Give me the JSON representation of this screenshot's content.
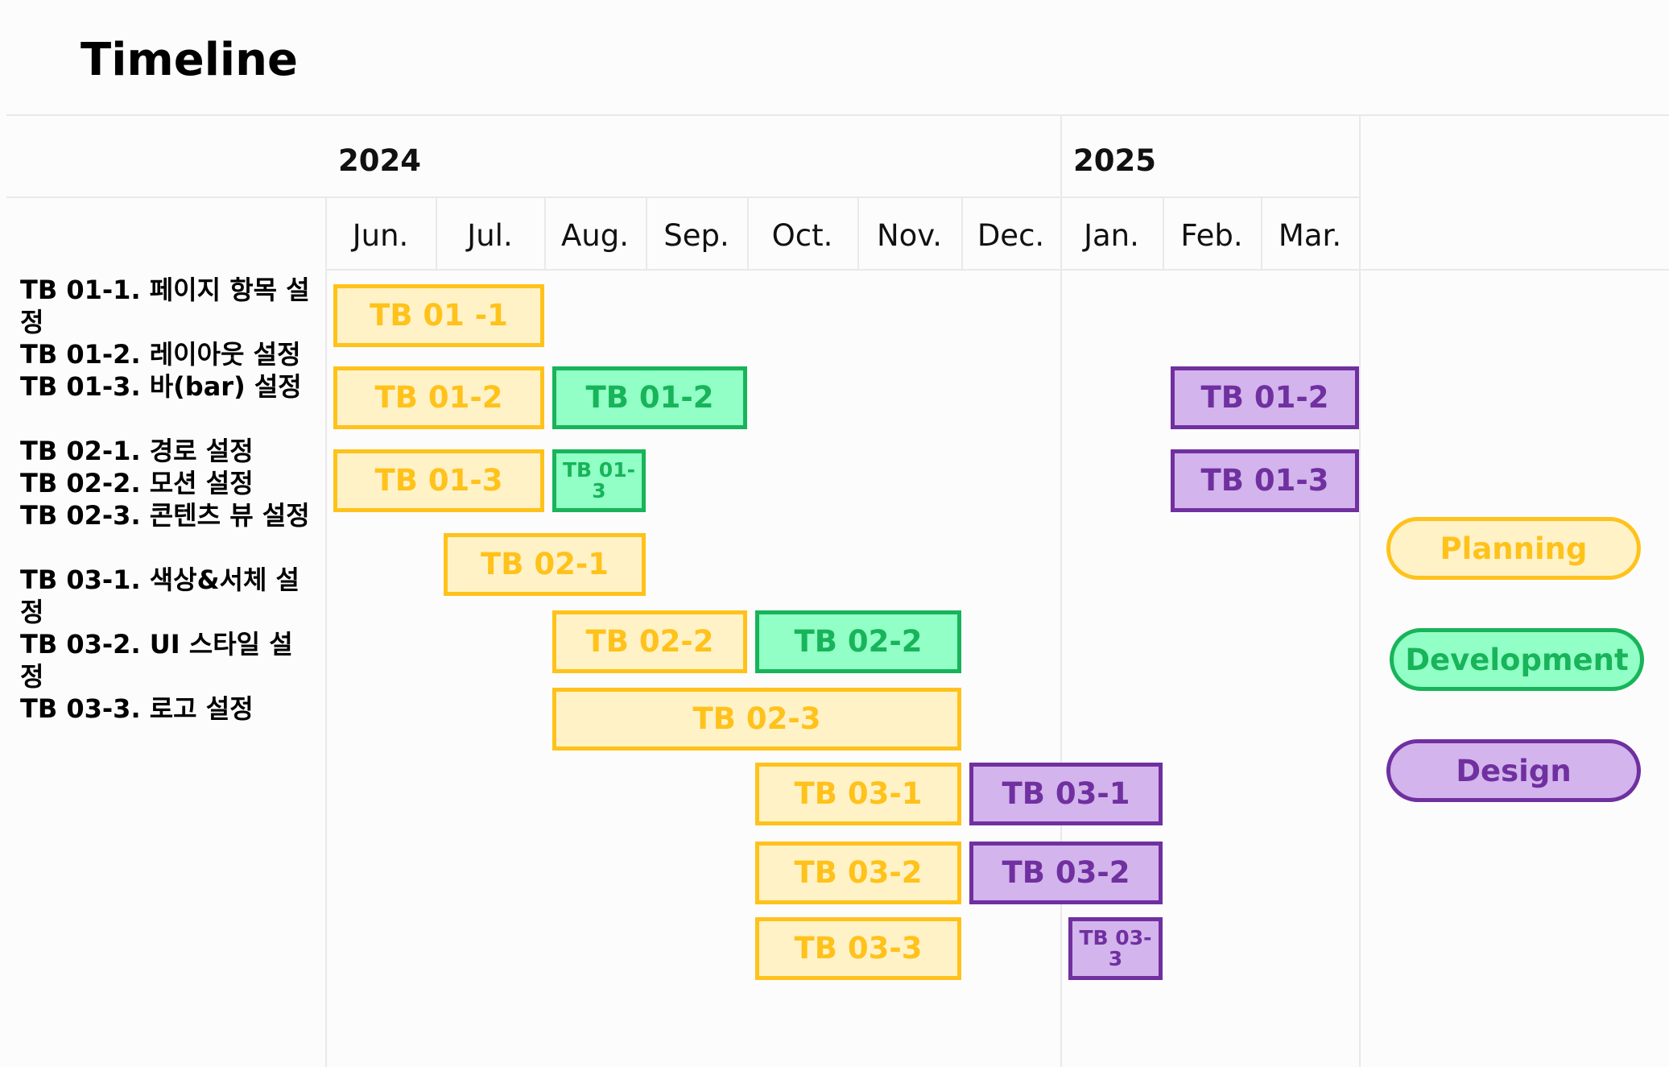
{
  "title": "Timeline",
  "colors": {
    "planning": {
      "fill": "#fff2c7",
      "border": "#ffc21b",
      "text": "#ffc21b"
    },
    "development": {
      "fill": "#92ffc6",
      "border": "#18b45a",
      "text": "#18b45a"
    },
    "design": {
      "fill": "#d3b4ec",
      "border": "#7030a0",
      "text": "#7030a0"
    }
  },
  "task_groups": [
    [
      "TB 01-1. 페이지 항목 설정",
      "TB 01-2. 레이아웃 설정",
      "TB 01-3. 바(bar) 설정"
    ],
    [
      "TB 02-1. 경로 설정",
      "TB 02-2. 모션 설정",
      "TB 02-3. 콘텐츠 뷰 설정"
    ],
    [
      "TB 03-1. 색상&서체 설정",
      "TB 03-2. UI 스타일 설정",
      "TB 03-3. 로고 설정"
    ]
  ],
  "chart_data": {
    "type": "gantt",
    "years": [
      {
        "label": "2024",
        "start_month": 0
      },
      {
        "label": "2025",
        "start_month": 7
      }
    ],
    "months": [
      "Jun.",
      "Jul.",
      "Aug.",
      "Sep.",
      "Oct.",
      "Nov.",
      "Dec.",
      "Jan.",
      "Feb.",
      "Mar."
    ],
    "bars": [
      {
        "label": "TB 01 -1",
        "phase": "planning",
        "row": 0,
        "start": 0,
        "end": 2
      },
      {
        "label": "TB 01-2",
        "phase": "planning",
        "row": 1,
        "start": 0,
        "end": 2
      },
      {
        "label": "TB 01-2",
        "phase": "development",
        "row": 1,
        "start": 2,
        "end": 4
      },
      {
        "label": "TB 01-2",
        "phase": "design",
        "row": 1,
        "start": 8,
        "end": 10
      },
      {
        "label": "TB 01-3",
        "phase": "planning",
        "row": 2,
        "start": 0,
        "end": 2
      },
      {
        "label": "TB 01-3",
        "phase": "development",
        "row": 2,
        "start": 2,
        "end": 3
      },
      {
        "label": "TB 01-3",
        "phase": "design",
        "row": 2,
        "start": 8,
        "end": 10
      },
      {
        "label": "TB 02-1",
        "phase": "planning",
        "row": 3,
        "start": 1,
        "end": 3
      },
      {
        "label": "TB 02-2",
        "phase": "planning",
        "row": 4,
        "start": 2,
        "end": 4
      },
      {
        "label": "TB 02-2",
        "phase": "development",
        "row": 4,
        "start": 4,
        "end": 6
      },
      {
        "label": "TB 02-3",
        "phase": "planning",
        "row": 5,
        "start": 2,
        "end": 6
      },
      {
        "label": "TB 03-1",
        "phase": "planning",
        "row": 6,
        "start": 4,
        "end": 6
      },
      {
        "label": "TB 03-1",
        "phase": "design",
        "row": 6,
        "start": 6,
        "end": 8
      },
      {
        "label": "TB 03-2",
        "phase": "planning",
        "row": 7,
        "start": 4,
        "end": 6
      },
      {
        "label": "TB 03-2",
        "phase": "design",
        "row": 7,
        "start": 6,
        "end": 8
      },
      {
        "label": "TB 03-3",
        "phase": "planning",
        "row": 8,
        "start": 4,
        "end": 6
      },
      {
        "label": "TB 03-3",
        "phase": "design",
        "row": 8,
        "start": 7,
        "end": 8
      }
    ],
    "legend": [
      {
        "label": "Planning",
        "phase": "planning"
      },
      {
        "label": "Development",
        "phase": "development"
      },
      {
        "label": "Design",
        "phase": "design"
      }
    ],
    "legend_position": "right"
  }
}
